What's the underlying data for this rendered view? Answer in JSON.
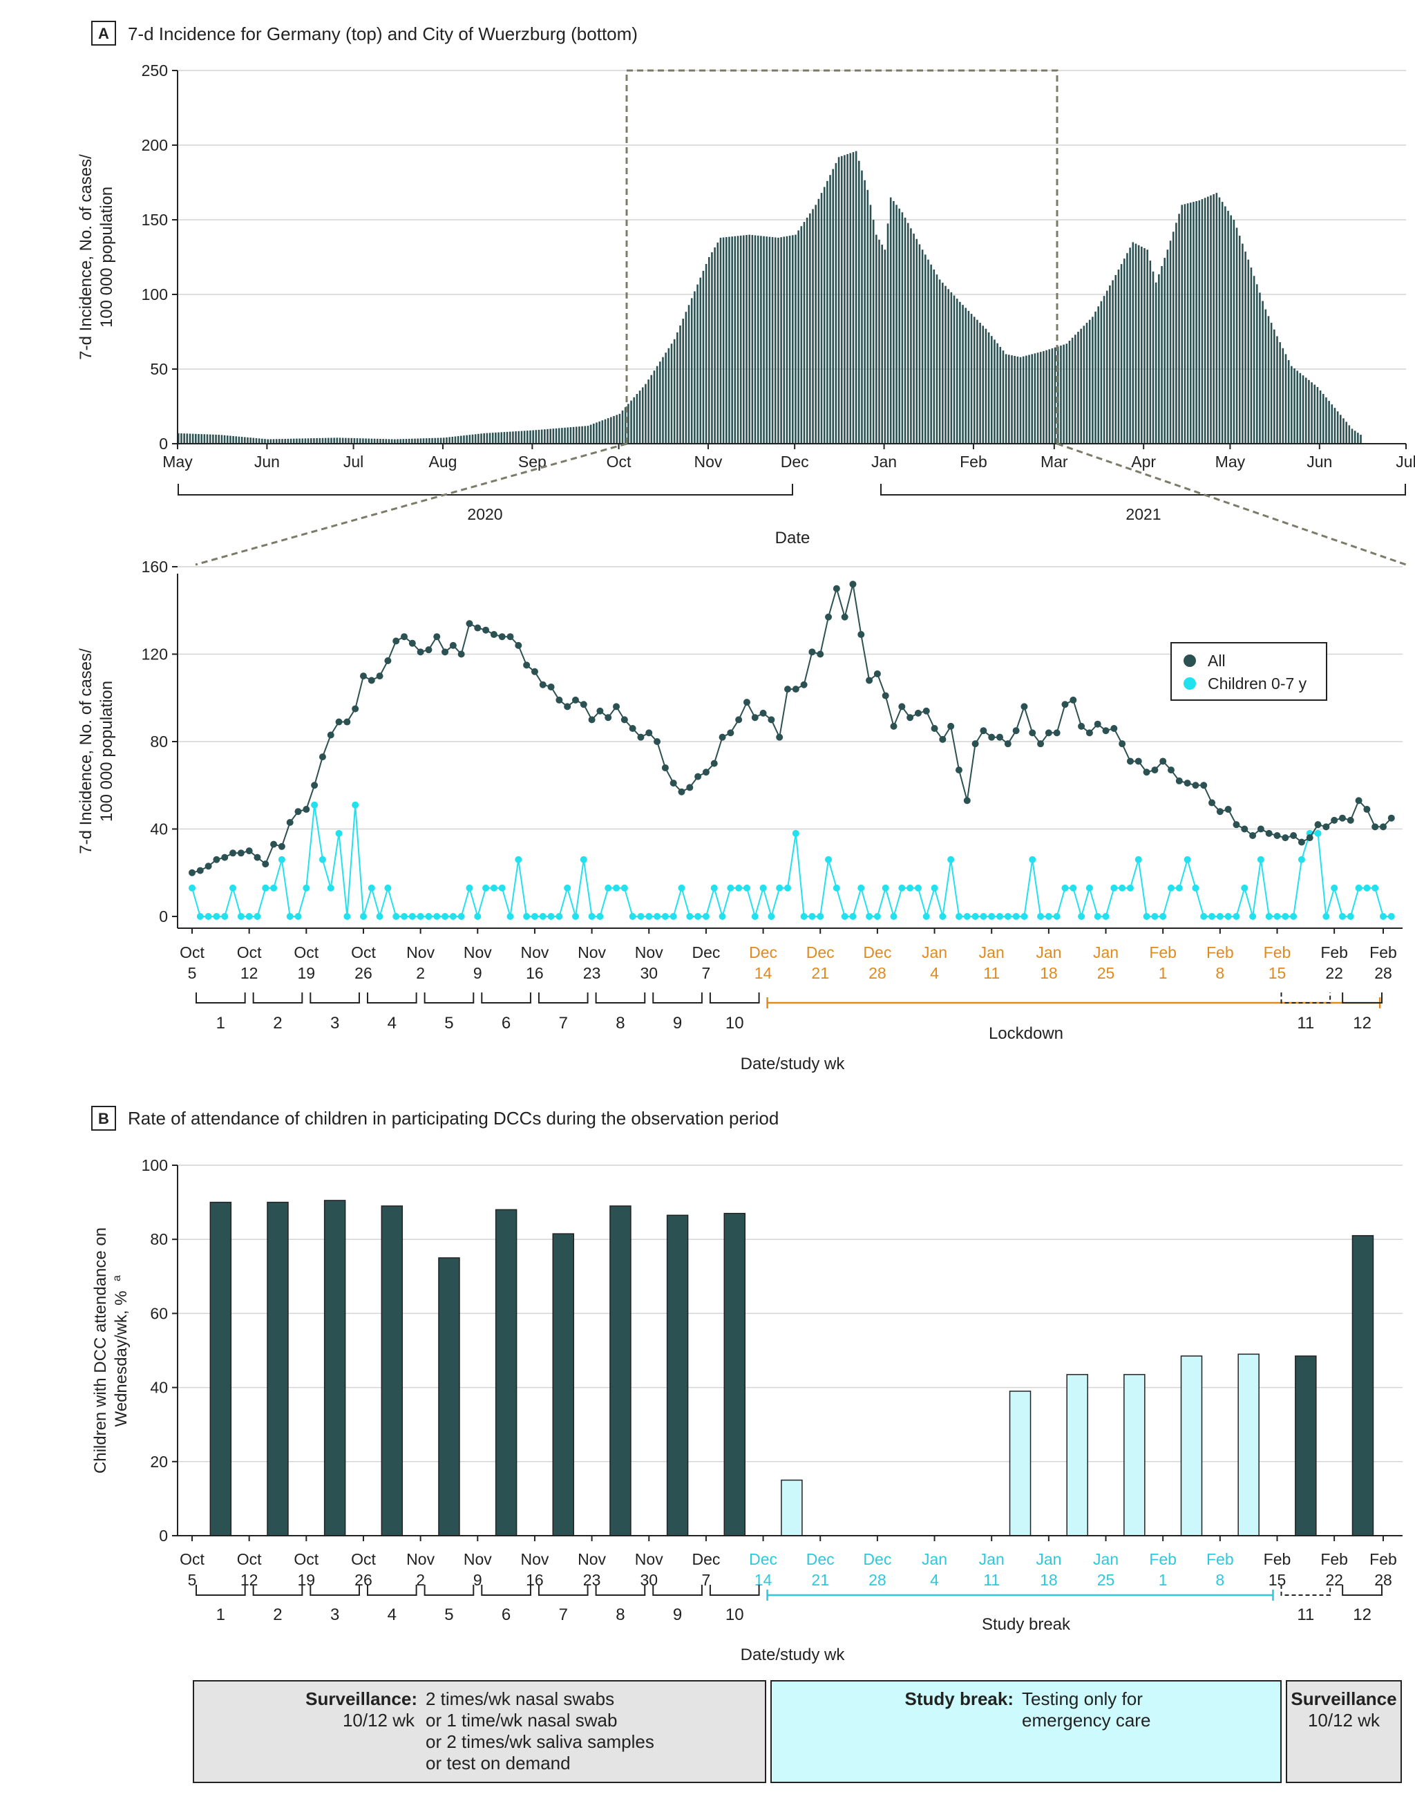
{
  "colors": {
    "dark": "#2c5152",
    "cyan": "#22e1ee",
    "cyan_bar": "#cdf8fb",
    "lockdown": "#e08a1e",
    "studybreak": "#2cc9dd",
    "grid": "#d4d4d4",
    "dash": "#7b7b68",
    "gray_box": "#e4e4e4",
    "cyan_box": "#cdfbfd"
  },
  "panel_a": {
    "letter": "A",
    "title": "7-d Incidence for Germany (top) and City of Wuerzburg (bottom)",
    "top_chart": {
      "ylabel_line1": "7-d Incidence, No. of cases/",
      "ylabel_line2": "100 000 population",
      "yticks": [
        "0",
        "50",
        "100",
        "150",
        "200",
        "250"
      ],
      "months": [
        "May",
        "Jun",
        "Jul",
        "Aug",
        "Sep",
        "Oct",
        "Nov",
        "Dec",
        "Jan",
        "Feb",
        "Mar",
        "Apr",
        "May",
        "Jun",
        "Jul"
      ],
      "years": [
        "2020",
        "2021"
      ],
      "xlabel": "Date"
    },
    "bottom_chart": {
      "ylabel_line1": "7-d Incidence, No. of cases/",
      "ylabel_line2": "100 000 population",
      "yticks": [
        "0",
        "40",
        "80",
        "120",
        "160"
      ],
      "legend": [
        "All",
        "Children 0-7 y"
      ],
      "dates": [
        [
          "Oct",
          "5"
        ],
        [
          "Oct",
          "12"
        ],
        [
          "Oct",
          "19"
        ],
        [
          "Oct",
          "26"
        ],
        [
          "Nov",
          "2"
        ],
        [
          "Nov",
          "9"
        ],
        [
          "Nov",
          "16"
        ],
        [
          "Nov",
          "23"
        ],
        [
          "Nov",
          "30"
        ],
        [
          "Dec",
          "7"
        ],
        [
          "Dec",
          "14"
        ],
        [
          "Dec",
          "21"
        ],
        [
          "Dec",
          "28"
        ],
        [
          "Jan",
          "4"
        ],
        [
          "Jan",
          "11"
        ],
        [
          "Jan",
          "18"
        ],
        [
          "Jan",
          "25"
        ],
        [
          "Feb",
          "1"
        ],
        [
          "Feb",
          "8"
        ],
        [
          "Feb",
          "15"
        ],
        [
          "Feb",
          "22"
        ],
        [
          "Feb",
          "28"
        ]
      ],
      "weeks": [
        "1",
        "2",
        "3",
        "4",
        "5",
        "6",
        "7",
        "8",
        "9",
        "10"
      ],
      "lockdown_label": "Lockdown",
      "week11": "11",
      "week12": "12",
      "xlabel": "Date/study wk"
    }
  },
  "panel_b": {
    "letter": "B",
    "title": "Rate of attendance of children in participating DCCs during the observation period",
    "ylabel_line1": "Children with DCC attendance on",
    "ylabel_line2": "Wednesday/wk, %",
    "ylabel_sup": "a",
    "yticks": [
      "0",
      "20",
      "40",
      "60",
      "80",
      "100"
    ],
    "dates": [
      [
        "Oct",
        "5"
      ],
      [
        "Oct",
        "12"
      ],
      [
        "Oct",
        "19"
      ],
      [
        "Oct",
        "26"
      ],
      [
        "Nov",
        "2"
      ],
      [
        "Nov",
        "9"
      ],
      [
        "Nov",
        "16"
      ],
      [
        "Nov",
        "23"
      ],
      [
        "Nov",
        "30"
      ],
      [
        "Dec",
        "7"
      ],
      [
        "Dec",
        "14"
      ],
      [
        "Dec",
        "21"
      ],
      [
        "Dec",
        "28"
      ],
      [
        "Jan",
        "4"
      ],
      [
        "Jan",
        "11"
      ],
      [
        "Jan",
        "18"
      ],
      [
        "Jan",
        "25"
      ],
      [
        "Feb",
        "1"
      ],
      [
        "Feb",
        "8"
      ],
      [
        "Feb",
        "15"
      ],
      [
        "Feb",
        "22"
      ],
      [
        "Feb",
        "28"
      ]
    ],
    "weeks": [
      "1",
      "2",
      "3",
      "4",
      "5",
      "6",
      "7",
      "8",
      "9",
      "10"
    ],
    "studybreak_label": "Study break",
    "week11": "11",
    "week12": "12",
    "xlabel": "Date/study wk",
    "boxes": [
      {
        "bold": "Surveillance:",
        "sub": "10/12 wk",
        "lines": [
          "2 times/wk nasal swabs",
          "or 1 time/wk nasal swab",
          "or 2 times/wk saliva samples",
          "or test on demand"
        ]
      },
      {
        "bold": "Study break:",
        "lines": [
          "Testing only for",
          "emergency care"
        ]
      },
      {
        "bold": "Surveillance",
        "sub": "10/12 wk"
      }
    ]
  },
  "chart_data": [
    {
      "type": "bar",
      "title": "7-d Incidence for Germany",
      "xlabel": "Date",
      "ylabel": "7-d Incidence, No. of cases/100 000 population",
      "ylim": [
        0,
        250
      ],
      "x_range": [
        "2020-05-01",
        "2021-07-01"
      ],
      "data_end": "2021-06-15",
      "keypoints": [
        [
          "2020-05-01",
          7
        ],
        [
          "2020-05-15",
          6
        ],
        [
          "2020-06-01",
          3
        ],
        [
          "2020-06-25",
          4
        ],
        [
          "2020-07-15",
          3
        ],
        [
          "2020-08-01",
          4
        ],
        [
          "2020-08-15",
          7
        ],
        [
          "2020-09-01",
          9
        ],
        [
          "2020-09-20",
          12
        ],
        [
          "2020-10-01",
          20
        ],
        [
          "2020-10-10",
          40
        ],
        [
          "2020-10-20",
          70
        ],
        [
          "2020-11-01",
          125
        ],
        [
          "2020-11-05",
          138
        ],
        [
          "2020-11-15",
          140
        ],
        [
          "2020-11-25",
          138
        ],
        [
          "2020-12-01",
          140
        ],
        [
          "2020-12-08",
          160
        ],
        [
          "2020-12-16",
          192
        ],
        [
          "2020-12-22",
          196
        ],
        [
          "2020-12-26",
          170
        ],
        [
          "2020-12-29",
          140
        ],
        [
          "2021-01-01",
          130
        ],
        [
          "2021-01-03",
          165
        ],
        [
          "2021-01-07",
          155
        ],
        [
          "2021-01-14",
          130
        ],
        [
          "2021-01-20",
          110
        ],
        [
          "2021-01-27",
          95
        ],
        [
          "2021-02-05",
          77
        ],
        [
          "2021-02-12",
          60
        ],
        [
          "2021-02-17",
          58
        ],
        [
          "2021-02-25",
          62
        ],
        [
          "2021-03-05",
          67
        ],
        [
          "2021-03-14",
          85
        ],
        [
          "2021-03-22",
          113
        ],
        [
          "2021-03-28",
          135
        ],
        [
          "2021-04-02",
          130
        ],
        [
          "2021-04-05",
          108
        ],
        [
          "2021-04-09",
          130
        ],
        [
          "2021-04-14",
          160
        ],
        [
          "2021-04-20",
          163
        ],
        [
          "2021-04-26",
          168
        ],
        [
          "2021-05-02",
          150
        ],
        [
          "2021-05-08",
          118
        ],
        [
          "2021-05-13",
          90
        ],
        [
          "2021-05-17",
          72
        ],
        [
          "2021-05-22",
          52
        ],
        [
          "2021-05-31",
          38
        ],
        [
          "2021-06-06",
          24
        ],
        [
          "2021-06-12",
          10
        ],
        [
          "2021-06-15",
          6
        ]
      ]
    },
    {
      "type": "line",
      "title": "7-d Incidence for City of Wuerzburg",
      "xlabel": "Date/study wk",
      "ylabel": "7-d Incidence, No. of cases/100 000 population",
      "ylim": [
        0,
        160
      ],
      "x_start": "2020-10-05",
      "x_end": "2021-02-28",
      "series": [
        {
          "name": "All",
          "values": [
            20,
            21,
            23,
            26,
            27,
            29,
            29,
            30,
            27,
            24,
            33,
            32,
            43,
            48,
            49,
            60,
            73,
            83,
            89,
            89,
            95,
            110,
            108,
            110,
            117,
            126,
            128,
            125,
            121,
            122,
            128,
            121,
            124,
            120,
            134,
            132,
            131,
            129,
            128,
            128,
            124,
            115,
            112,
            106,
            105,
            99,
            96,
            99,
            97,
            90,
            94,
            91,
            96,
            90,
            86,
            82,
            84,
            80,
            68,
            61,
            57,
            59,
            64,
            66,
            70,
            82,
            84,
            90,
            98,
            91,
            93,
            90,
            82,
            104,
            104,
            106,
            121,
            120,
            137,
            150,
            137,
            152,
            129,
            108,
            111,
            101,
            87,
            96,
            91,
            93,
            94,
            86,
            81,
            87,
            67,
            53,
            79,
            85,
            82,
            82,
            79,
            85,
            96,
            84,
            79,
            84,
            84,
            97,
            99,
            87,
            84,
            88,
            85,
            86,
            79,
            71,
            71,
            66,
            67,
            71,
            67,
            62,
            61,
            60,
            60,
            52,
            48,
            49,
            42,
            40,
            37,
            40,
            38,
            37,
            36,
            37,
            34,
            36,
            42,
            41,
            44,
            45,
            44,
            53,
            49,
            41,
            41,
            45
          ]
        },
        {
          "name": "Children 0-7 y",
          "values": [
            13,
            0,
            0,
            0,
            0,
            13,
            0,
            0,
            0,
            13,
            13,
            26,
            0,
            0,
            13,
            51,
            26,
            13,
            38,
            0,
            51,
            0,
            13,
            0,
            13,
            0,
            0,
            0,
            0,
            0,
            0,
            0,
            0,
            0,
            13,
            0,
            13,
            13,
            13,
            0,
            26,
            0,
            0,
            0,
            0,
            0,
            13,
            0,
            26,
            0,
            0,
            13,
            13,
            13,
            0,
            0,
            0,
            0,
            0,
            0,
            13,
            0,
            0,
            0,
            13,
            0,
            13,
            13,
            13,
            0,
            13,
            0,
            13,
            13,
            38,
            0,
            0,
            0,
            26,
            13,
            0,
            0,
            13,
            0,
            0,
            13,
            0,
            13,
            13,
            13,
            0,
            13,
            0,
            26,
            0,
            0,
            0,
            0,
            0,
            0,
            0,
            0,
            0,
            26,
            0,
            0,
            0,
            13,
            13,
            0,
            13,
            0,
            0,
            13,
            13,
            13,
            26,
            0,
            0,
            0,
            13,
            13,
            26,
            13,
            0,
            0,
            0,
            0,
            0,
            13,
            0,
            26,
            0,
            0,
            0,
            0,
            26,
            38,
            38,
            0,
            13,
            0,
            0,
            13,
            13,
            13,
            0,
            0
          ]
        }
      ]
    },
    {
      "type": "bar",
      "title": "Rate of attendance of children in participating DCCs during the observation period",
      "xlabel": "Date/study wk",
      "ylabel": "Children with DCC attendance on Wednesday/wk, %",
      "ylim": [
        0,
        100
      ],
      "categories": [
        "Oct 5",
        "Oct 12",
        "Oct 19",
        "Oct 26",
        "Nov 2",
        "Nov 9",
        "Nov 16",
        "Nov 23",
        "Nov 30",
        "Dec 7",
        "Dec 14",
        "Dec 21",
        "Dec 28",
        "Jan 4",
        "Jan 11",
        "Jan 18",
        "Jan 25",
        "Feb 1",
        "Feb 8",
        "Feb 15",
        "Feb 22"
      ],
      "series": [
        {
          "name": "Surveillance",
          "values": [
            90,
            90,
            90.5,
            89,
            75,
            88,
            81.5,
            89,
            86.5,
            87,
            null,
            null,
            null,
            null,
            null,
            null,
            null,
            null,
            null,
            48.5,
            81
          ]
        },
        {
          "name": "Study break",
          "values": [
            null,
            null,
            null,
            null,
            null,
            null,
            null,
            null,
            null,
            null,
            15,
            null,
            null,
            null,
            39,
            43.5,
            43.5,
            48.5,
            49,
            null,
            null
          ]
        }
      ]
    }
  ]
}
